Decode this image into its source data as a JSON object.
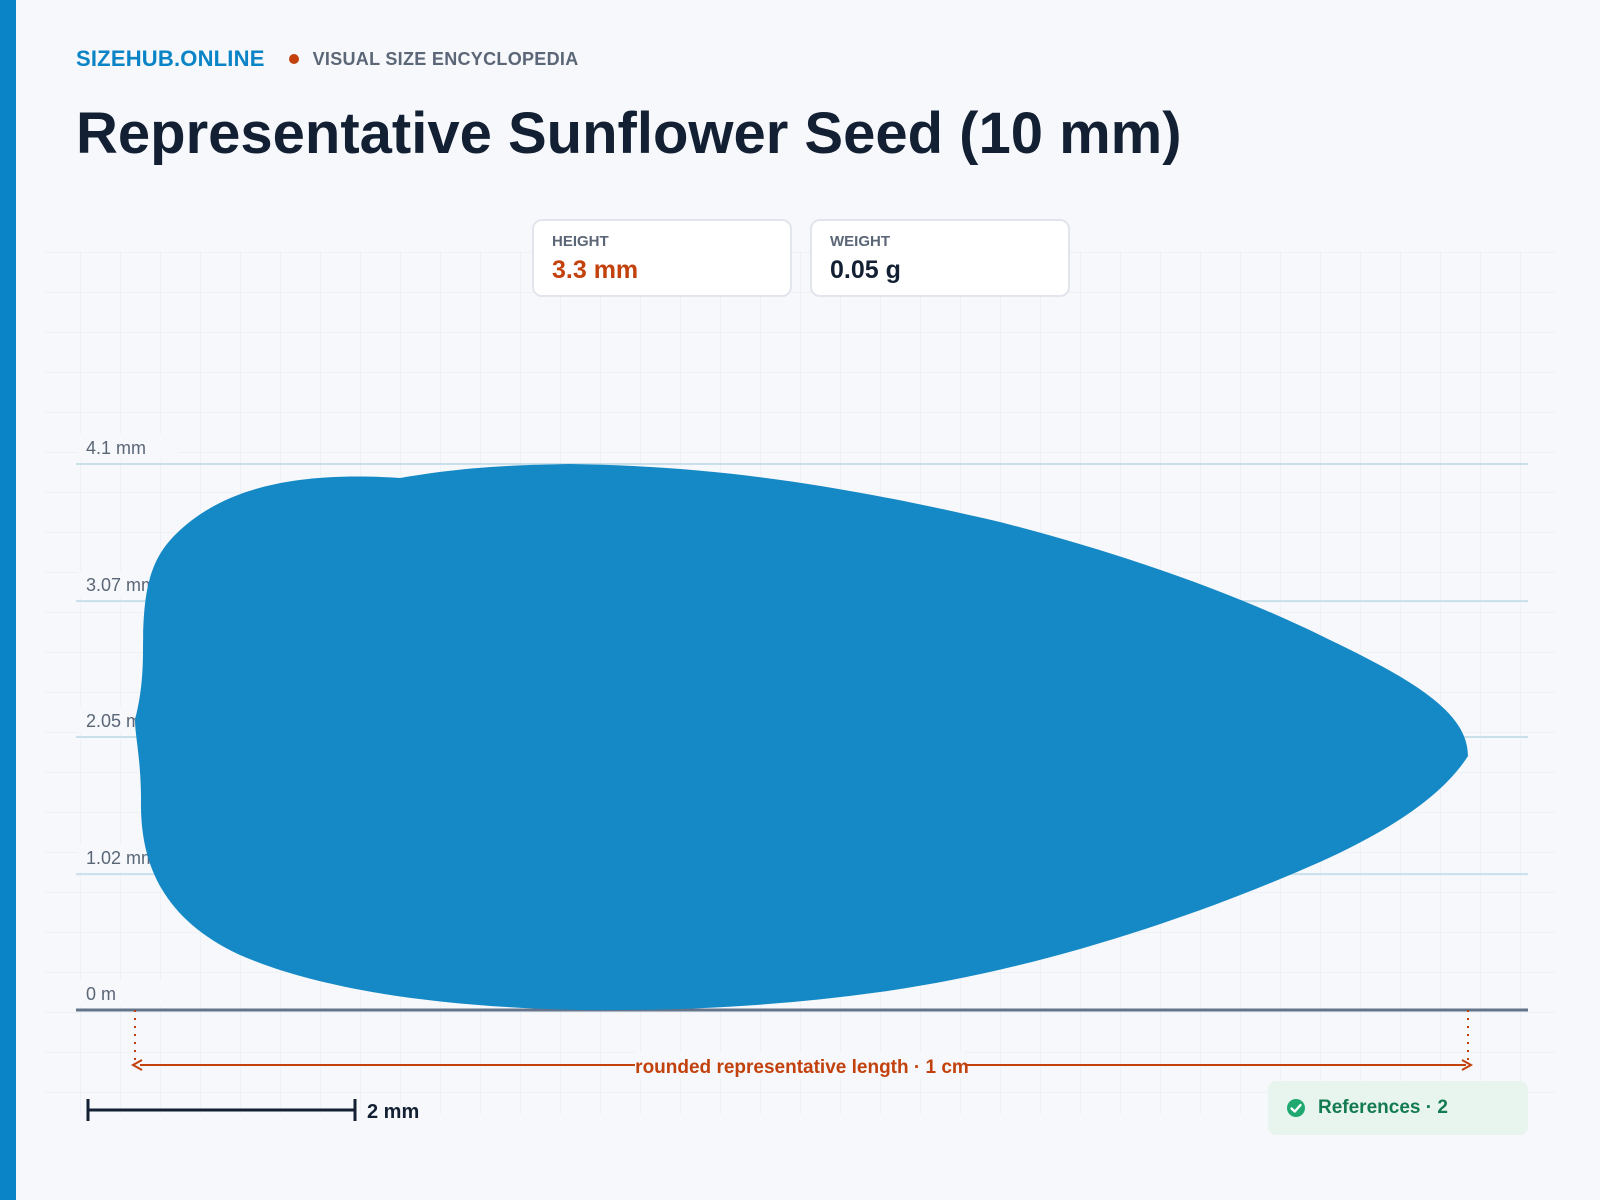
{
  "header": {
    "brand": "SIZEHUB.ONLINE",
    "subtitle": "VISUAL SIZE ENCYCLOPEDIA",
    "title": "Representative Sunflower Seed (10 mm)"
  },
  "stats": [
    {
      "label": "HEIGHT",
      "value": "3.3 mm"
    },
    {
      "label": "WEIGHT",
      "value": "0.05 g"
    }
  ],
  "y_axis": {
    "ticks": [
      {
        "label": "4.1 mm",
        "value": 4.1
      },
      {
        "label": "3.07 mm",
        "value": 3.07
      },
      {
        "label": "2.05 mm",
        "value": 2.05
      },
      {
        "label": "1.02 mm",
        "value": 1.02
      },
      {
        "label": "0 m",
        "value": 0
      }
    ],
    "max": 4.1
  },
  "length_annotation": "rounded representative length · 1 cm",
  "scale_bar": {
    "label": "2 mm"
  },
  "references": {
    "label": "References · 2",
    "icon": "check-circle-icon"
  },
  "colors": {
    "accent": "#0a84c6",
    "seed": "#1589c6",
    "highlight": "#c2410c",
    "success": "#137a52"
  }
}
